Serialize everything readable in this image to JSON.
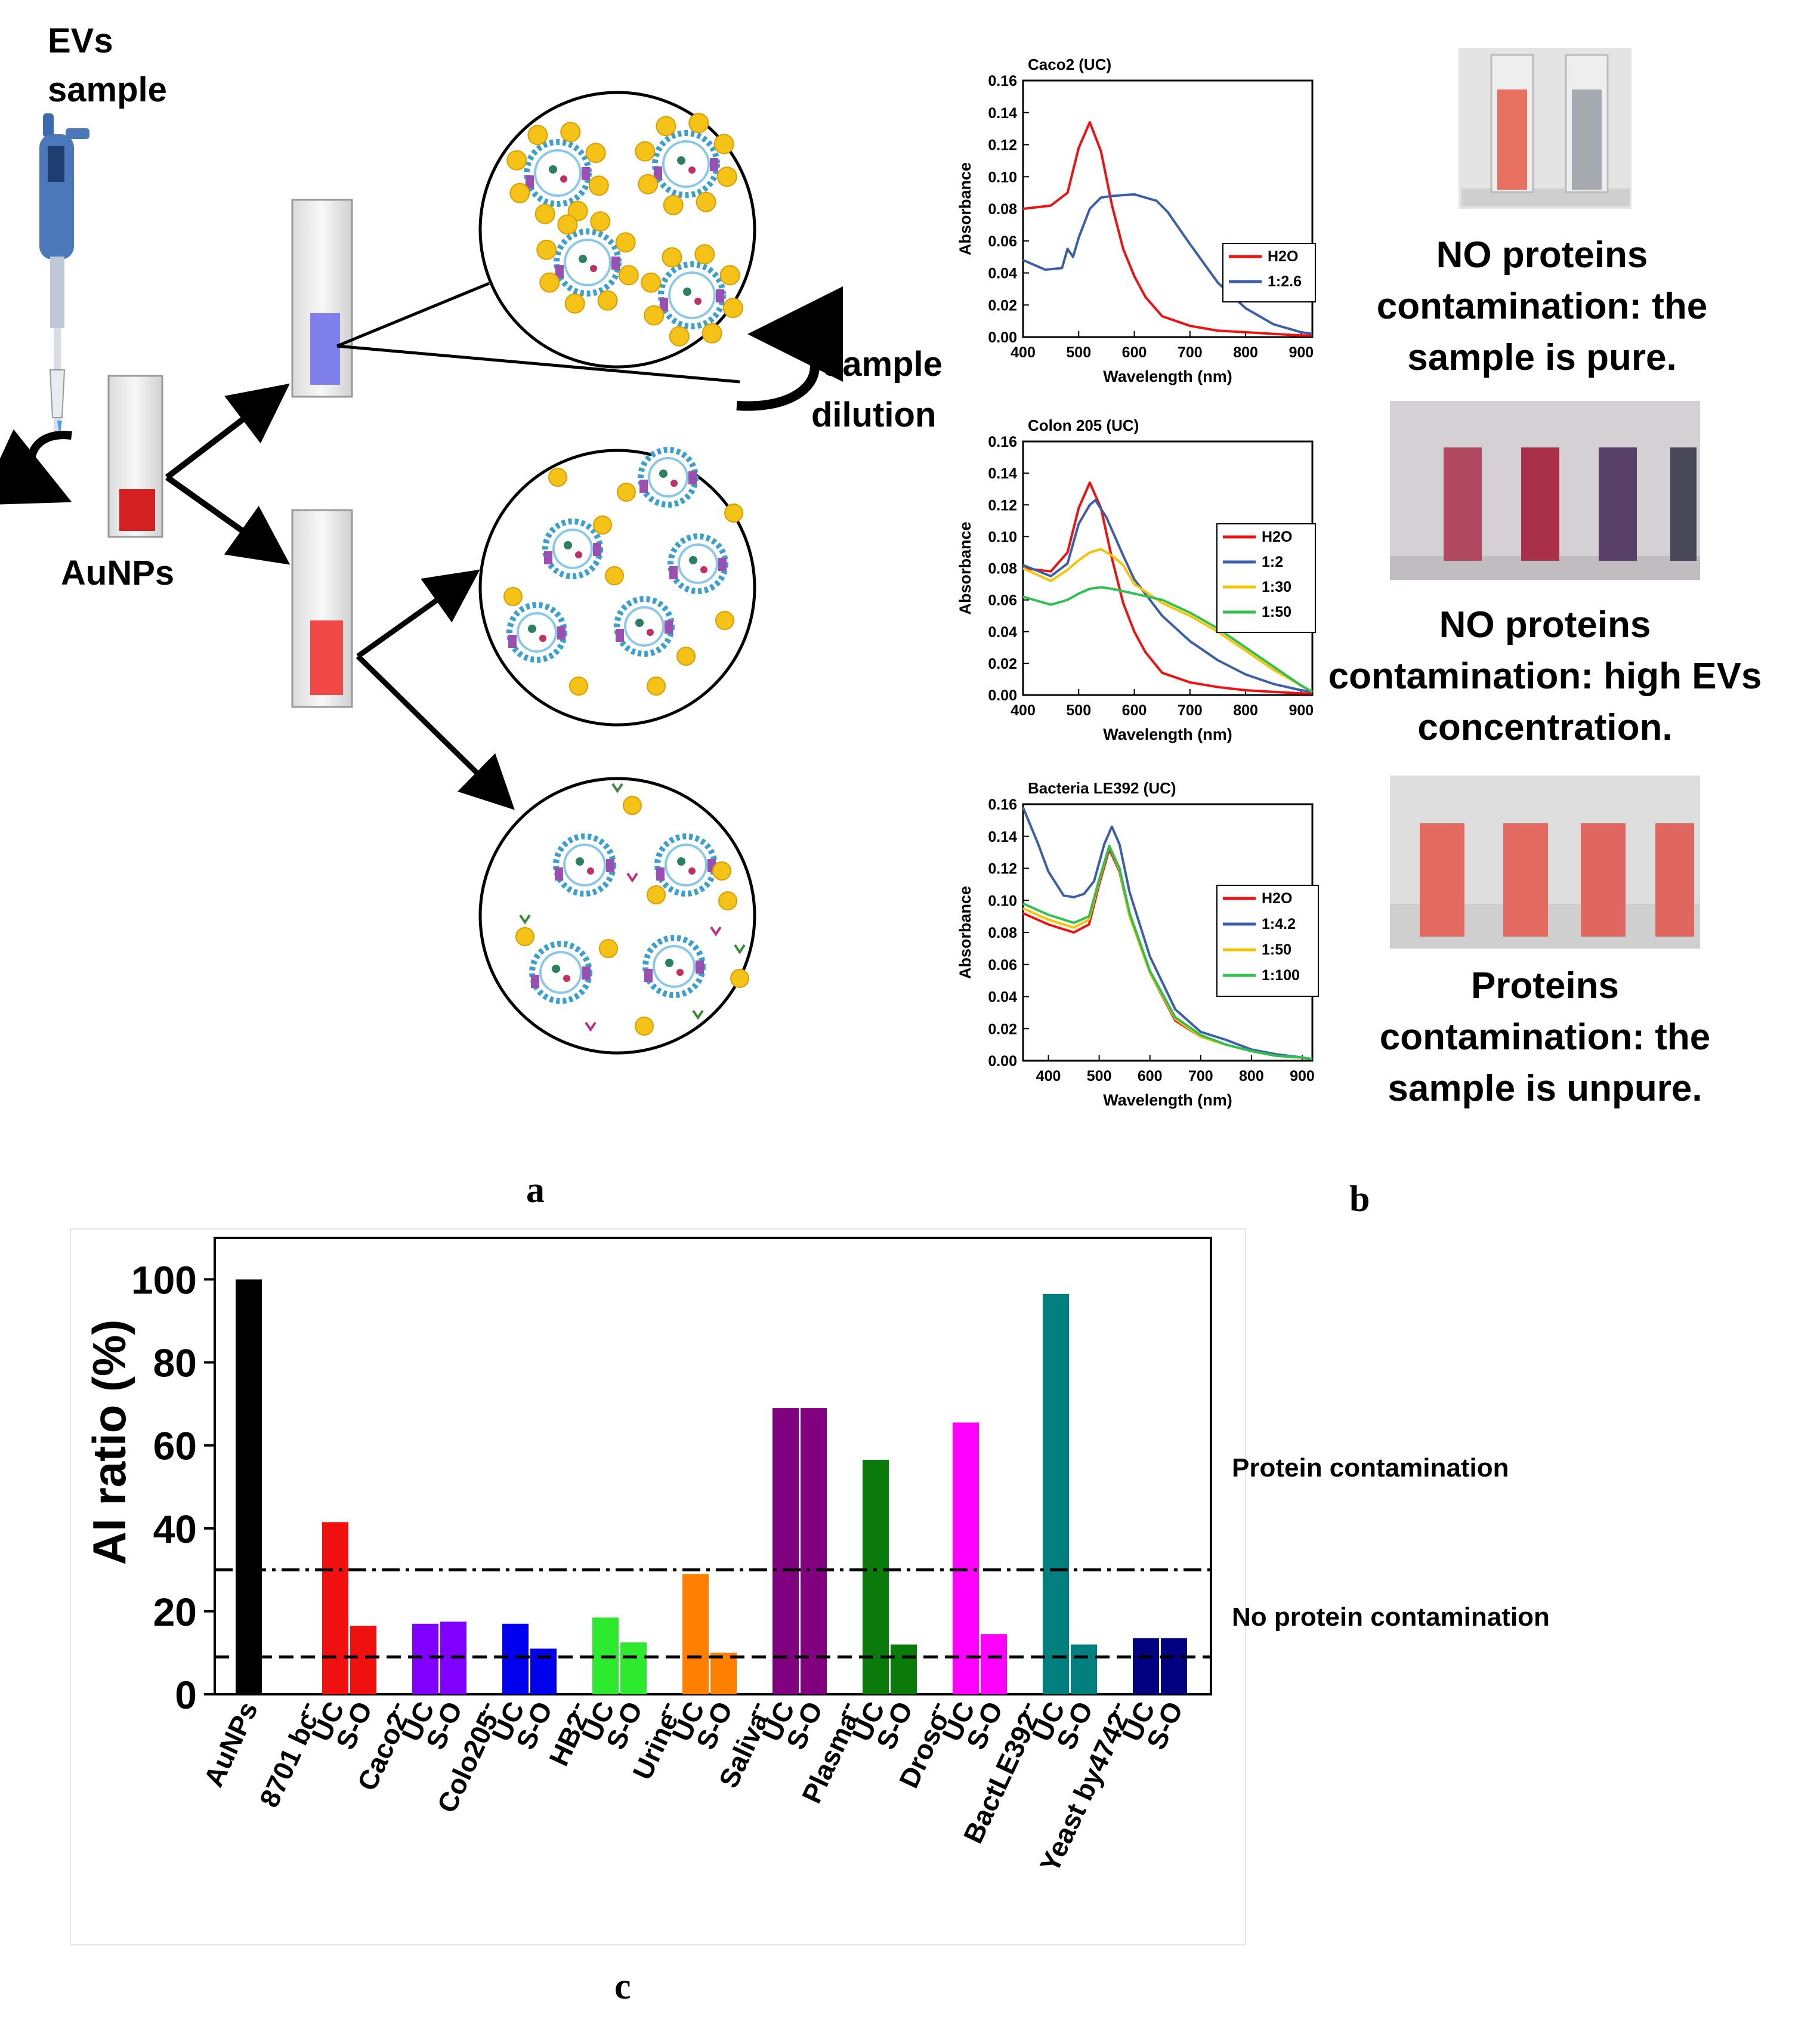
{
  "panel_a": {
    "label": "a",
    "ev_sample_line1": "EVs",
    "ev_sample_line2": "sample",
    "aunps_label": "AuNPs",
    "dilution_line1": "sample",
    "dilution_line2": "dilution"
  },
  "panel_b": {
    "label": "b",
    "result_texts": [
      [
        "NO proteins",
        "contamination: the",
        "sample is pure."
      ],
      [
        "NO proteins",
        "contamination: high EVs",
        "concentration."
      ],
      [
        "Proteins",
        "contamination: the",
        "sample is unpure."
      ]
    ]
  },
  "panel_c": {
    "label": "c"
  },
  "colors": {
    "red": "#f01010",
    "blue": "#3a5fa8",
    "yellow": "#f5c400",
    "green": "#30c050",
    "aunp": "#f5c218",
    "ev_blue": "#3aa0d0",
    "ev_purple": "#9a50b0"
  },
  "chart_data": [
    {
      "type": "line",
      "title": "Caco2 (UC)",
      "xlabel": "Wavelength (nm)",
      "ylabel": "Absorbance",
      "xlim": [
        400,
        920
      ],
      "ylim": [
        0,
        0.16
      ],
      "xticks": [
        400,
        500,
        600,
        700,
        800,
        900
      ],
      "yticks": [
        0.0,
        0.02,
        0.04,
        0.06,
        0.08,
        0.1,
        0.12,
        0.14,
        0.16
      ],
      "series": [
        {
          "name": "H2O",
          "color": "#f01010",
          "x": [
            400,
            450,
            480,
            500,
            520,
            540,
            560,
            580,
            600,
            620,
            650,
            700,
            750,
            800,
            850,
            900,
            920
          ],
          "y": [
            0.08,
            0.082,
            0.09,
            0.118,
            0.134,
            0.116,
            0.082,
            0.055,
            0.038,
            0.025,
            0.013,
            0.007,
            0.004,
            0.003,
            0.002,
            0.001,
            0.001
          ]
        },
        {
          "name": "1:2.6",
          "color": "#3a5fa8",
          "x": [
            400,
            440,
            470,
            480,
            490,
            500,
            520,
            540,
            560,
            600,
            640,
            660,
            700,
            750,
            800,
            850,
            900,
            920
          ],
          "y": [
            0.048,
            0.042,
            0.043,
            0.055,
            0.05,
            0.062,
            0.08,
            0.087,
            0.088,
            0.089,
            0.085,
            0.078,
            0.058,
            0.034,
            0.018,
            0.008,
            0.003,
            0.002
          ]
        }
      ]
    },
    {
      "type": "line",
      "title": "Colon 205 (UC)",
      "xlabel": "Wavelength (nm)",
      "ylabel": "Absorbance",
      "xlim": [
        400,
        920
      ],
      "ylim": [
        0,
        0.16
      ],
      "xticks": [
        400,
        500,
        600,
        700,
        800,
        900
      ],
      "yticks": [
        0.0,
        0.02,
        0.04,
        0.06,
        0.08,
        0.1,
        0.12,
        0.14,
        0.16
      ],
      "series": [
        {
          "name": "H2O",
          "color": "#f01010",
          "x": [
            400,
            450,
            480,
            500,
            520,
            540,
            560,
            580,
            600,
            620,
            650,
            700,
            750,
            800,
            850,
            900,
            920
          ],
          "y": [
            0.08,
            0.078,
            0.09,
            0.118,
            0.134,
            0.118,
            0.086,
            0.058,
            0.04,
            0.027,
            0.014,
            0.008,
            0.005,
            0.003,
            0.002,
            0.001,
            0.001
          ]
        },
        {
          "name": "1:2",
          "color": "#3a5fa8",
          "x": [
            400,
            450,
            480,
            500,
            520,
            530,
            550,
            580,
            600,
            650,
            700,
            750,
            800,
            850,
            900,
            920
          ],
          "y": [
            0.082,
            0.075,
            0.083,
            0.108,
            0.12,
            0.123,
            0.112,
            0.088,
            0.073,
            0.05,
            0.034,
            0.022,
            0.013,
            0.007,
            0.003,
            0.002
          ]
        },
        {
          "name": "1:30",
          "color": "#f5c400",
          "x": [
            400,
            450,
            480,
            500,
            520,
            540,
            560,
            580,
            600,
            650,
            700,
            750,
            800,
            850,
            900,
            920
          ],
          "y": [
            0.08,
            0.072,
            0.079,
            0.085,
            0.09,
            0.092,
            0.088,
            0.082,
            0.07,
            0.058,
            0.05,
            0.04,
            0.028,
            0.016,
            0.006,
            0.002
          ]
        },
        {
          "name": "1:50",
          "color": "#30c050",
          "x": [
            400,
            450,
            480,
            500,
            520,
            540,
            560,
            600,
            650,
            700,
            750,
            800,
            850,
            900,
            920
          ],
          "y": [
            0.062,
            0.057,
            0.06,
            0.064,
            0.067,
            0.068,
            0.067,
            0.064,
            0.06,
            0.052,
            0.042,
            0.03,
            0.018,
            0.006,
            0.002
          ]
        }
      ]
    },
    {
      "type": "line",
      "title": "Bacteria LE392 (UC)",
      "xlabel": "Wavelength (nm)",
      "ylabel": "Absorbance",
      "xlim": [
        350,
        920
      ],
      "ylim": [
        0,
        0.16
      ],
      "xticks": [
        400,
        500,
        600,
        700,
        800,
        900
      ],
      "yticks": [
        0.0,
        0.02,
        0.04,
        0.06,
        0.08,
        0.1,
        0.12,
        0.14,
        0.16
      ],
      "series": [
        {
          "name": "H2O",
          "color": "#f01010",
          "x": [
            350,
            400,
            450,
            480,
            500,
            520,
            540,
            560,
            600,
            650,
            700,
            750,
            800,
            850,
            900,
            920
          ],
          "y": [
            0.092,
            0.085,
            0.08,
            0.085,
            0.11,
            0.132,
            0.118,
            0.09,
            0.055,
            0.025,
            0.015,
            0.01,
            0.006,
            0.003,
            0.002,
            0.001
          ]
        },
        {
          "name": "1:4.2",
          "color": "#3a5fa8",
          "x": [
            350,
            380,
            400,
            430,
            450,
            470,
            490,
            510,
            525,
            540,
            560,
            600,
            650,
            700,
            750,
            800,
            850,
            900,
            920
          ],
          "y": [
            0.158,
            0.135,
            0.118,
            0.103,
            0.102,
            0.104,
            0.112,
            0.135,
            0.146,
            0.135,
            0.105,
            0.065,
            0.032,
            0.018,
            0.013,
            0.007,
            0.004,
            0.002,
            0.001
          ]
        },
        {
          "name": "1:50",
          "color": "#f5c400",
          "x": [
            350,
            400,
            450,
            480,
            500,
            520,
            540,
            560,
            600,
            650,
            700,
            750,
            800,
            850,
            900,
            920
          ],
          "y": [
            0.095,
            0.088,
            0.083,
            0.088,
            0.112,
            0.134,
            0.119,
            0.09,
            0.055,
            0.026,
            0.015,
            0.01,
            0.006,
            0.003,
            0.002,
            0.001
          ]
        },
        {
          "name": "1:100",
          "color": "#30c050",
          "x": [
            350,
            400,
            450,
            480,
            500,
            520,
            540,
            560,
            600,
            650,
            700,
            750,
            800,
            850,
            900,
            920
          ],
          "y": [
            0.098,
            0.091,
            0.086,
            0.09,
            0.113,
            0.134,
            0.12,
            0.092,
            0.056,
            0.027,
            0.016,
            0.01,
            0.006,
            0.003,
            0.002,
            0.001
          ]
        }
      ]
    },
    {
      "type": "bar",
      "title": "",
      "xlabel": "",
      "ylabel": "AI ratio (%)",
      "ylim": [
        0,
        110
      ],
      "yticks": [
        0,
        20,
        40,
        60,
        80,
        100
      ],
      "groups": [
        {
          "label": "AuNPs",
          "color": "#000000",
          "bars": [
            {
              "sub": "",
              "value": 100
            }
          ]
        },
        {
          "label": "8701 bc",
          "color": "#f01010",
          "bars": [
            {
              "sub": "UC",
              "value": 41.5
            },
            {
              "sub": "S-O",
              "value": 16.5
            }
          ]
        },
        {
          "label": "Caco2",
          "color": "#8000ff",
          "bars": [
            {
              "sub": "UC",
              "value": 17
            },
            {
              "sub": "S-O",
              "value": 17.5
            }
          ]
        },
        {
          "label": "Colo205",
          "color": "#0000ee",
          "bars": [
            {
              "sub": "UC",
              "value": 17
            },
            {
              "sub": "S-O",
              "value": 11
            }
          ]
        },
        {
          "label": "HB2",
          "color": "#2eea2e",
          "bars": [
            {
              "sub": "UC",
              "value": 18.5
            },
            {
              "sub": "S-O",
              "value": 12.5
            }
          ]
        },
        {
          "label": "Urine",
          "color": "#ff8000",
          "bars": [
            {
              "sub": "UC",
              "value": 29
            },
            {
              "sub": "S-O",
              "value": 10
            }
          ]
        },
        {
          "label": "Saliva",
          "color": "#800080",
          "bars": [
            {
              "sub": "UC",
              "value": 69
            },
            {
              "sub": "S-O",
              "value": 69
            }
          ]
        },
        {
          "label": "Plasma",
          "color": "#0a7a0a",
          "bars": [
            {
              "sub": "UC",
              "value": 56.5
            },
            {
              "sub": "S-O",
              "value": 12
            }
          ]
        },
        {
          "label": "Droso",
          "color": "#ff00ff",
          "bars": [
            {
              "sub": "UC",
              "value": 65.5
            },
            {
              "sub": "S-O",
              "value": 14.5
            }
          ]
        },
        {
          "label": "BactLE392",
          "color": "#007f7f",
          "bars": [
            {
              "sub": "UC",
              "value": 96.5
            },
            {
              "sub": "S-O",
              "value": 12
            }
          ]
        },
        {
          "label": "Yeast by4742",
          "color": "#000080",
          "bars": [
            {
              "sub": "UC",
              "value": 13.5
            },
            {
              "sub": "S-O",
              "value": 13.5
            }
          ]
        }
      ],
      "group_separator": "--",
      "thresholds": [
        {
          "value": 30,
          "style": "dash-dot",
          "label": "Protein contamination"
        },
        {
          "value": 9,
          "style": "dashed",
          "label": "No protein contamination"
        }
      ]
    }
  ]
}
